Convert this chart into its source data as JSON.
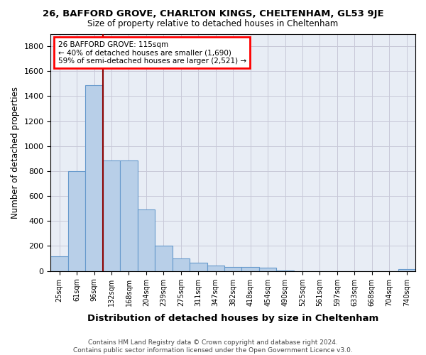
{
  "title": "26, BAFFORD GROVE, CHARLTON KINGS, CHELTENHAM, GL53 9JE",
  "subtitle": "Size of property relative to detached houses in Cheltenham",
  "xlabel": "Distribution of detached houses by size in Cheltenham",
  "ylabel": "Number of detached properties",
  "footer": "Contains HM Land Registry data © Crown copyright and database right 2024.\nContains public sector information licensed under the Open Government Licence v3.0.",
  "categories": [
    "25sqm",
    "61sqm",
    "96sqm",
    "132sqm",
    "168sqm",
    "204sqm",
    "239sqm",
    "275sqm",
    "311sqm",
    "347sqm",
    "382sqm",
    "418sqm",
    "454sqm",
    "490sqm",
    "525sqm",
    "561sqm",
    "597sqm",
    "633sqm",
    "668sqm",
    "704sqm",
    "740sqm"
  ],
  "bar_values": [
    120,
    800,
    1490,
    885,
    885,
    490,
    205,
    100,
    65,
    45,
    35,
    30,
    25,
    5,
    0,
    0,
    0,
    0,
    0,
    0,
    15
  ],
  "bar_color": "#b8cfe8",
  "bar_edgecolor": "#6699cc",
  "vline_x_index": 2.5,
  "annotation_line1": "26 BAFFORD GROVE: 115sqm",
  "annotation_line2": "← 40% of detached houses are smaller (1,690)",
  "annotation_line3": "59% of semi-detached houses are larger (2,521) →",
  "vline_color": "#8b0000",
  "grid_color": "#c8c8d8",
  "bg_color": "#e8edf5",
  "background_color": "#ffffff",
  "ylim": [
    0,
    1900
  ],
  "yticks": [
    0,
    200,
    400,
    600,
    800,
    1000,
    1200,
    1400,
    1600,
    1800
  ]
}
